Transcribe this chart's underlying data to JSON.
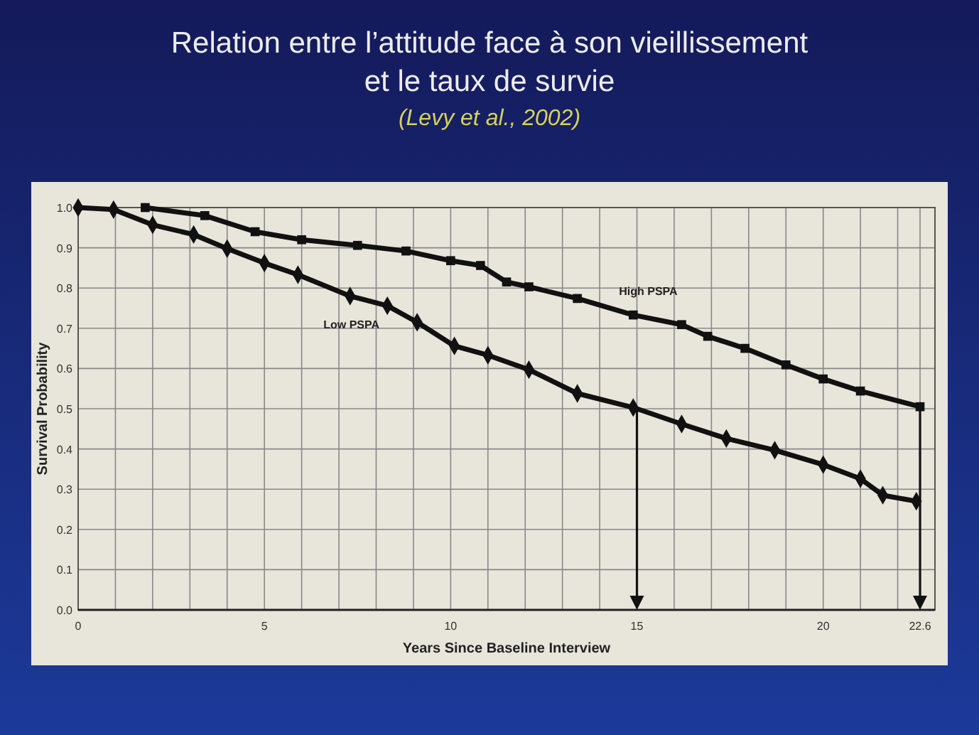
{
  "chart_data": {
    "type": "line",
    "title": "Relation entre l’attitude face à son vieillissement\net le taux de survie",
    "subtitle": "(Levy et al., 2002)",
    "xlabel": "Years Since Baseline Interview",
    "ylabel": "Survival Probability",
    "xlim": [
      0,
      23
    ],
    "ylim": [
      0,
      1
    ],
    "xticks": [
      0,
      {
        "value": 1,
        "label": null
      },
      {
        "value": 2,
        "label": null
      },
      {
        "value": 3,
        "label": null
      },
      {
        "value": 4,
        "label": null
      },
      5,
      {
        "value": 6,
        "label": null
      },
      {
        "value": 7,
        "label": null
      },
      {
        "value": 8,
        "label": null
      },
      {
        "value": 9,
        "label": null
      },
      10,
      {
        "value": 11,
        "label": null
      },
      {
        "value": 12,
        "label": null
      },
      {
        "value": 13,
        "label": null
      },
      {
        "value": 14,
        "label": null
      },
      15,
      {
        "value": 16,
        "label": null
      },
      {
        "value": 17,
        "label": null
      },
      {
        "value": 18,
        "label": null
      },
      {
        "value": 19,
        "label": null
      },
      20,
      {
        "value": 21,
        "label": null
      },
      {
        "value": 22,
        "label": null
      },
      22.6
    ],
    "yticks": [
      {
        "value": 0,
        "label": "0.0"
      },
      0.1,
      0.2,
      0.3,
      0.4,
      0.5,
      0.6,
      0.7,
      0.8,
      0.9,
      {
        "value": 1,
        "label": "1.0"
      }
    ],
    "grid": true,
    "line_style": "solid",
    "ref_lines": [
      {
        "axis": "x",
        "value": 15,
        "label": null,
        "color": "#111111"
      },
      {
        "axis": "x",
        "value": 22.6,
        "label": null,
        "color": "#111111"
      }
    ],
    "series": [
      {
        "name": "High PSPA",
        "color": "#111111",
        "marker": "square",
        "x": [
          1.8,
          3.4,
          4.75,
          6.0,
          7.5,
          8.8,
          10.0,
          10.8,
          11.5,
          12.1,
          13.4,
          14.9,
          16.2,
          16.9,
          17.9,
          19.0,
          20.0,
          21.0,
          22.6
        ],
        "values": [
          1.0,
          0.98,
          0.94,
          0.92,
          0.906,
          0.892,
          0.868,
          0.856,
          0.815,
          0.803,
          0.774,
          0.733,
          0.709,
          0.68,
          0.65,
          0.609,
          0.574,
          0.544,
          0.505
        ]
      },
      {
        "name": "Low PSPA",
        "color": "#111111",
        "marker": "diamond",
        "x": [
          0,
          0.95,
          2.0,
          3.1,
          4.0,
          5.0,
          5.9,
          7.3,
          8.3,
          9.1,
          10.1,
          11.0,
          12.1,
          13.4,
          14.9,
          16.2,
          17.4,
          18.7,
          20.0,
          21.0,
          21.6,
          22.5
        ],
        "values": [
          1.0,
          0.995,
          0.957,
          0.933,
          0.898,
          0.862,
          0.833,
          0.78,
          0.756,
          0.715,
          0.656,
          0.633,
          0.597,
          0.538,
          0.503,
          0.462,
          0.426,
          0.397,
          0.361,
          0.326,
          0.285,
          0.27
        ]
      }
    ]
  }
}
